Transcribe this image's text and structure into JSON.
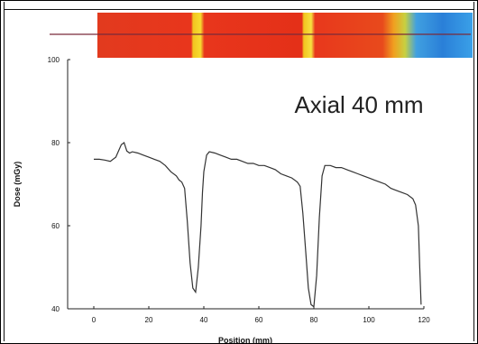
{
  "chart_data": {
    "type": "line",
    "annotation": "Axial 40 mm",
    "xlabel": "Position (mm)",
    "ylabel": "Dose (mGy)",
    "xlim": [
      0,
      120
    ],
    "ylim": [
      40,
      100
    ],
    "xticks": [
      0,
      20,
      40,
      60,
      80,
      100,
      120
    ],
    "yticks": [
      40,
      60,
      80,
      100
    ],
    "grid": false,
    "colormap_strip": {
      "description_colors": [
        "#e8281a",
        "#f0b020",
        "#2a8ee0"
      ],
      "line_color": "#7a2a3a"
    },
    "series": [
      {
        "color": "#333333",
        "points": [
          [
            0,
            76
          ],
          [
            2,
            76
          ],
          [
            4,
            75.8
          ],
          [
            6,
            75.5
          ],
          [
            8,
            76.5
          ],
          [
            9,
            78
          ],
          [
            10,
            79.5
          ],
          [
            11,
            80
          ],
          [
            12,
            78
          ],
          [
            13,
            77.5
          ],
          [
            14,
            77.8
          ],
          [
            16,
            77.5
          ],
          [
            18,
            77
          ],
          [
            20,
            76.5
          ],
          [
            22,
            76
          ],
          [
            24,
            75.5
          ],
          [
            26,
            74.5
          ],
          [
            28,
            73
          ],
          [
            30,
            72
          ],
          [
            31,
            71
          ],
          [
            32,
            70.5
          ],
          [
            33,
            69
          ],
          [
            34,
            61
          ],
          [
            35,
            51
          ],
          [
            36,
            45
          ],
          [
            37,
            44
          ],
          [
            38,
            50
          ],
          [
            39,
            60
          ],
          [
            39.5,
            68
          ],
          [
            40,
            73
          ],
          [
            41,
            77
          ],
          [
            42,
            77.8
          ],
          [
            44,
            77.5
          ],
          [
            46,
            77
          ],
          [
            48,
            76.5
          ],
          [
            50,
            76
          ],
          [
            52,
            76
          ],
          [
            54,
            75.5
          ],
          [
            56,
            75
          ],
          [
            58,
            75
          ],
          [
            60,
            74.5
          ],
          [
            62,
            74.5
          ],
          [
            64,
            74
          ],
          [
            66,
            73.5
          ],
          [
            68,
            72.5
          ],
          [
            70,
            72
          ],
          [
            72,
            71.5
          ],
          [
            74,
            70.5
          ],
          [
            75,
            69.5
          ],
          [
            76,
            63
          ],
          [
            77,
            54
          ],
          [
            78,
            45
          ],
          [
            79,
            41
          ],
          [
            80,
            40.5
          ],
          [
            81,
            48
          ],
          [
            82,
            62
          ],
          [
            83,
            72
          ],
          [
            84,
            74.5
          ],
          [
            86,
            74.5
          ],
          [
            88,
            74
          ],
          [
            90,
            74
          ],
          [
            92,
            73.5
          ],
          [
            94,
            73
          ],
          [
            96,
            72.5
          ],
          [
            98,
            72
          ],
          [
            100,
            71.5
          ],
          [
            102,
            71
          ],
          [
            104,
            70.5
          ],
          [
            106,
            70
          ],
          [
            108,
            69
          ],
          [
            110,
            68.5
          ],
          [
            112,
            68
          ],
          [
            114,
            67.5
          ],
          [
            116,
            66.5
          ],
          [
            117,
            65
          ],
          [
            118,
            60
          ],
          [
            118.5,
            50
          ],
          [
            119,
            41
          ]
        ]
      }
    ]
  }
}
